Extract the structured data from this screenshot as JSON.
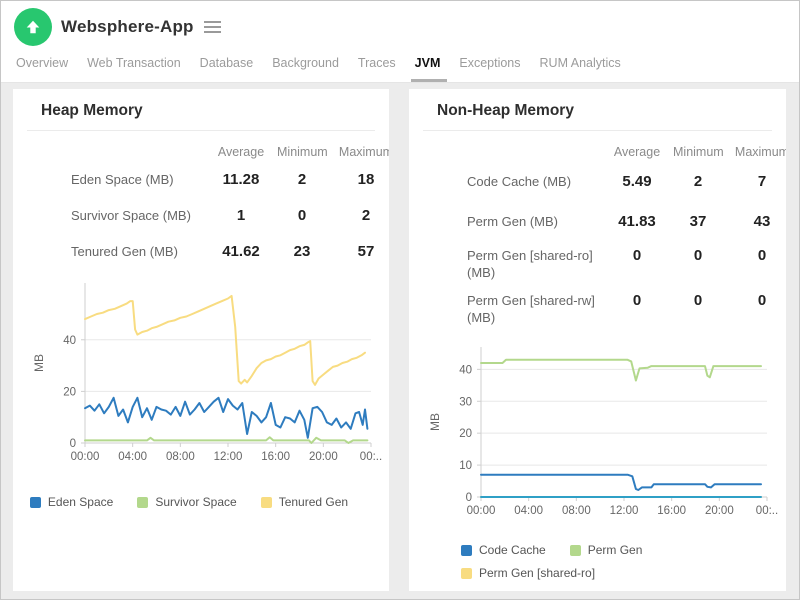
{
  "colors": {
    "accent": "#28c76f",
    "active_tab_underline": "#b0b0b0"
  },
  "header": {
    "app_name": "Websphere-App"
  },
  "tabs": [
    {
      "label": "Overview"
    },
    {
      "label": "Web Transaction"
    },
    {
      "label": "Database"
    },
    {
      "label": "Background"
    },
    {
      "label": "Traces"
    },
    {
      "label": "JVM",
      "active": true
    },
    {
      "label": "Exceptions"
    },
    {
      "label": "RUM Analytics"
    }
  ],
  "panels": {
    "heap": {
      "title": "Heap Memory",
      "table": {
        "headers": [
          "Average",
          "Minimum",
          "Maximum"
        ],
        "rows": [
          {
            "label": "Eden Space (MB)",
            "avg": "11.28",
            "min": "2",
            "max": "18"
          },
          {
            "label": "Survivor Space (MB)",
            "avg": "1",
            "min": "0",
            "max": "2"
          },
          {
            "label": "Tenured Gen (MB)",
            "avg": "41.62",
            "min": "23",
            "max": "57"
          }
        ]
      }
    },
    "nonheap": {
      "title": "Non-Heap Memory",
      "table": {
        "headers": [
          "Average",
          "Minimum",
          "Maximum"
        ],
        "rows": [
          {
            "label": "Code Cache (MB)",
            "avg": "5.49",
            "min": "2",
            "max": "7"
          },
          {
            "label": "Perm Gen (MB)",
            "avg": "41.83",
            "min": "37",
            "max": "43"
          },
          {
            "label": "Perm Gen [shared-ro] (MB)",
            "avg": "0",
            "min": "0",
            "max": "0"
          },
          {
            "label": "Perm Gen [shared-rw] (MB)",
            "avg": "0",
            "min": "0",
            "max": "0"
          }
        ]
      }
    }
  },
  "chart_data": [
    {
      "type": "line",
      "title": "Heap Memory",
      "xlabel": "",
      "ylabel": "MB",
      "xlim": [
        0,
        24
      ],
      "ylim": [
        0,
        62
      ],
      "yticks": [
        0,
        20,
        40
      ],
      "xticks": [
        {
          "h": 0,
          "label": "00:00"
        },
        {
          "h": 4,
          "label": "04:00"
        },
        {
          "h": 8,
          "label": "08:00"
        },
        {
          "h": 12,
          "label": "12:00"
        },
        {
          "h": 16,
          "label": "16:00"
        },
        {
          "h": 20,
          "label": "20:00"
        },
        {
          "h": 24,
          "label": "00:.."
        }
      ],
      "grid": true,
      "legend_position": "bottom",
      "series": [
        {
          "name": "Eden Space",
          "color": "#2e7cbf",
          "points": [
            [
              0,
              13.5
            ],
            [
              0.4,
              14.5
            ],
            [
              0.8,
              12.5
            ],
            [
              1.2,
              15
            ],
            [
              1.6,
              11.5
            ],
            [
              2,
              14
            ],
            [
              2.4,
              17.5
            ],
            [
              2.8,
              10.5
            ],
            [
              3.2,
              13
            ],
            [
              3.6,
              8
            ],
            [
              4,
              14
            ],
            [
              4.4,
              17.5
            ],
            [
              4.8,
              10
            ],
            [
              5.2,
              13.5
            ],
            [
              5.6,
              9
            ],
            [
              6,
              14
            ],
            [
              6.4,
              13
            ],
            [
              6.8,
              12.5
            ],
            [
              7.2,
              11
            ],
            [
              7.6,
              14
            ],
            [
              8,
              10.5
            ],
            [
              8.4,
              16
            ],
            [
              8.8,
              11
            ],
            [
              9.2,
              13
            ],
            [
              9.6,
              15.5
            ],
            [
              10,
              12
            ],
            [
              10.4,
              14
            ],
            [
              10.8,
              16
            ],
            [
              11.2,
              17.5
            ],
            [
              11.6,
              12
            ],
            [
              12,
              17
            ],
            [
              12.4,
              14.5
            ],
            [
              12.8,
              13
            ],
            [
              13.2,
              15.5
            ],
            [
              13.6,
              3.5
            ],
            [
              14,
              12
            ],
            [
              14.4,
              10.5
            ],
            [
              14.8,
              8
            ],
            [
              15.2,
              10
            ],
            [
              15.6,
              15.5
            ],
            [
              16,
              7
            ],
            [
              16.4,
              6
            ],
            [
              16.8,
              10
            ],
            [
              17.2,
              9.5
            ],
            [
              17.6,
              8
            ],
            [
              18,
              12.5
            ],
            [
              18.4,
              9
            ],
            [
              18.7,
              2
            ],
            [
              19.1,
              13.5
            ],
            [
              19.5,
              14
            ],
            [
              19.9,
              12
            ],
            [
              20.3,
              8
            ],
            [
              20.7,
              7
            ],
            [
              21.1,
              9.5
            ],
            [
              21.5,
              6
            ],
            [
              21.9,
              8
            ],
            [
              22.3,
              5.5
            ],
            [
              22.7,
              11.5
            ],
            [
              23,
              12
            ],
            [
              23.3,
              7
            ],
            [
              23.5,
              13
            ],
            [
              23.7,
              5.5
            ]
          ]
        },
        {
          "name": "Survivor Space",
          "color": "#b3d88c",
          "points": [
            [
              0,
              1
            ],
            [
              5.2,
              1
            ],
            [
              5.5,
              2
            ],
            [
              5.8,
              1
            ],
            [
              15.2,
              1
            ],
            [
              15.5,
              2.2
            ],
            [
              15.8,
              1
            ],
            [
              18.8,
              1
            ],
            [
              19,
              0
            ],
            [
              19.4,
              2
            ],
            [
              19.8,
              1
            ],
            [
              21.8,
              1
            ],
            [
              22.1,
              0
            ],
            [
              22.5,
              1
            ],
            [
              23.7,
              1
            ]
          ]
        },
        {
          "name": "Tenured Gen",
          "color": "#f8dc81",
          "points": [
            [
              0,
              48
            ],
            [
              0.5,
              49
            ],
            [
              1,
              50
            ],
            [
              1.5,
              50.5
            ],
            [
              2,
              51.5
            ],
            [
              2.5,
              52
            ],
            [
              3,
              53
            ],
            [
              3.5,
              54
            ],
            [
              3.8,
              55
            ],
            [
              4,
              55
            ],
            [
              4.2,
              44
            ],
            [
              4.4,
              42
            ],
            [
              4.8,
              43
            ],
            [
              5.2,
              43.5
            ],
            [
              5.6,
              44.5
            ],
            [
              6,
              45
            ],
            [
              6.5,
              46
            ],
            [
              7,
              47
            ],
            [
              7.5,
              47.5
            ],
            [
              8,
              48.5
            ],
            [
              8.5,
              49
            ],
            [
              9,
              50
            ],
            [
              9.5,
              51
            ],
            [
              10,
              52
            ],
            [
              10.5,
              53
            ],
            [
              11,
              54
            ],
            [
              11.5,
              55
            ],
            [
              12,
              56
            ],
            [
              12.3,
              57
            ],
            [
              12.6,
              45
            ],
            [
              12.9,
              24
            ],
            [
              13.1,
              23
            ],
            [
              13.4,
              24.5
            ],
            [
              13.6,
              23.5
            ],
            [
              14,
              26
            ],
            [
              14.4,
              29
            ],
            [
              14.8,
              31
            ],
            [
              15.2,
              32
            ],
            [
              15.6,
              32.5
            ],
            [
              16,
              33.5
            ],
            [
              16.4,
              34
            ],
            [
              16.8,
              35
            ],
            [
              17.2,
              36
            ],
            [
              17.6,
              36.5
            ],
            [
              18,
              37.5
            ],
            [
              18.4,
              38
            ],
            [
              18.7,
              39
            ],
            [
              18.9,
              39.5
            ],
            [
              19.1,
              24
            ],
            [
              19.3,
              22.5
            ],
            [
              19.6,
              25
            ],
            [
              20,
              26.5
            ],
            [
              20.4,
              28
            ],
            [
              20.8,
              29.5
            ],
            [
              21.2,
              30
            ],
            [
              21.6,
              31
            ],
            [
              22,
              31.5
            ],
            [
              22.4,
              32.5
            ],
            [
              22.8,
              33
            ],
            [
              23.2,
              34
            ],
            [
              23.5,
              35
            ]
          ]
        }
      ]
    },
    {
      "type": "line",
      "title": "Non-Heap Memory",
      "xlabel": "",
      "ylabel": "MB",
      "xlim": [
        0,
        24
      ],
      "ylim": [
        0,
        47
      ],
      "yticks": [
        0,
        10,
        20,
        30,
        40
      ],
      "xticks": [
        {
          "h": 0,
          "label": "00:00"
        },
        {
          "h": 4,
          "label": "04:00"
        },
        {
          "h": 8,
          "label": "08:00"
        },
        {
          "h": 12,
          "label": "12:00"
        },
        {
          "h": 16,
          "label": "16:00"
        },
        {
          "h": 20,
          "label": "20:00"
        },
        {
          "h": 24,
          "label": "00:.."
        }
      ],
      "grid": true,
      "legend_position": "bottom",
      "series": [
        {
          "name": "Code Cache",
          "color": "#2e7cbf",
          "points": [
            [
              0,
              7
            ],
            [
              12.3,
              7
            ],
            [
              12.7,
              6.5
            ],
            [
              13,
              2.5
            ],
            [
              13.2,
              2.2
            ],
            [
              13.5,
              3
            ],
            [
              14.3,
              3
            ],
            [
              14.5,
              4
            ],
            [
              18.8,
              4
            ],
            [
              19,
              3.2
            ],
            [
              19.3,
              3
            ],
            [
              19.6,
              4
            ],
            [
              23.5,
              4
            ]
          ]
        },
        {
          "name": "Perm Gen",
          "color": "#b3d88c",
          "points": [
            [
              0,
              42
            ],
            [
              1.8,
              42
            ],
            [
              2.1,
              43
            ],
            [
              12.3,
              43
            ],
            [
              12.6,
              42.5
            ],
            [
              13,
              36.5
            ],
            [
              13.3,
              40.3
            ],
            [
              14,
              40.5
            ],
            [
              14.3,
              41
            ],
            [
              18.8,
              41
            ],
            [
              19,
              38
            ],
            [
              19.2,
              37.5
            ],
            [
              19.5,
              41
            ],
            [
              23.5,
              41
            ]
          ]
        },
        {
          "name": "Perm Gen [shared-ro]",
          "color": "#f8dc81",
          "points": [
            [
              0,
              0
            ],
            [
              23.5,
              0
            ]
          ]
        },
        {
          "name": "Perm Gen [shared-rw]",
          "color": "#2fa0c6",
          "points": [
            [
              0,
              0
            ],
            [
              23.5,
              0
            ]
          ]
        }
      ]
    }
  ]
}
